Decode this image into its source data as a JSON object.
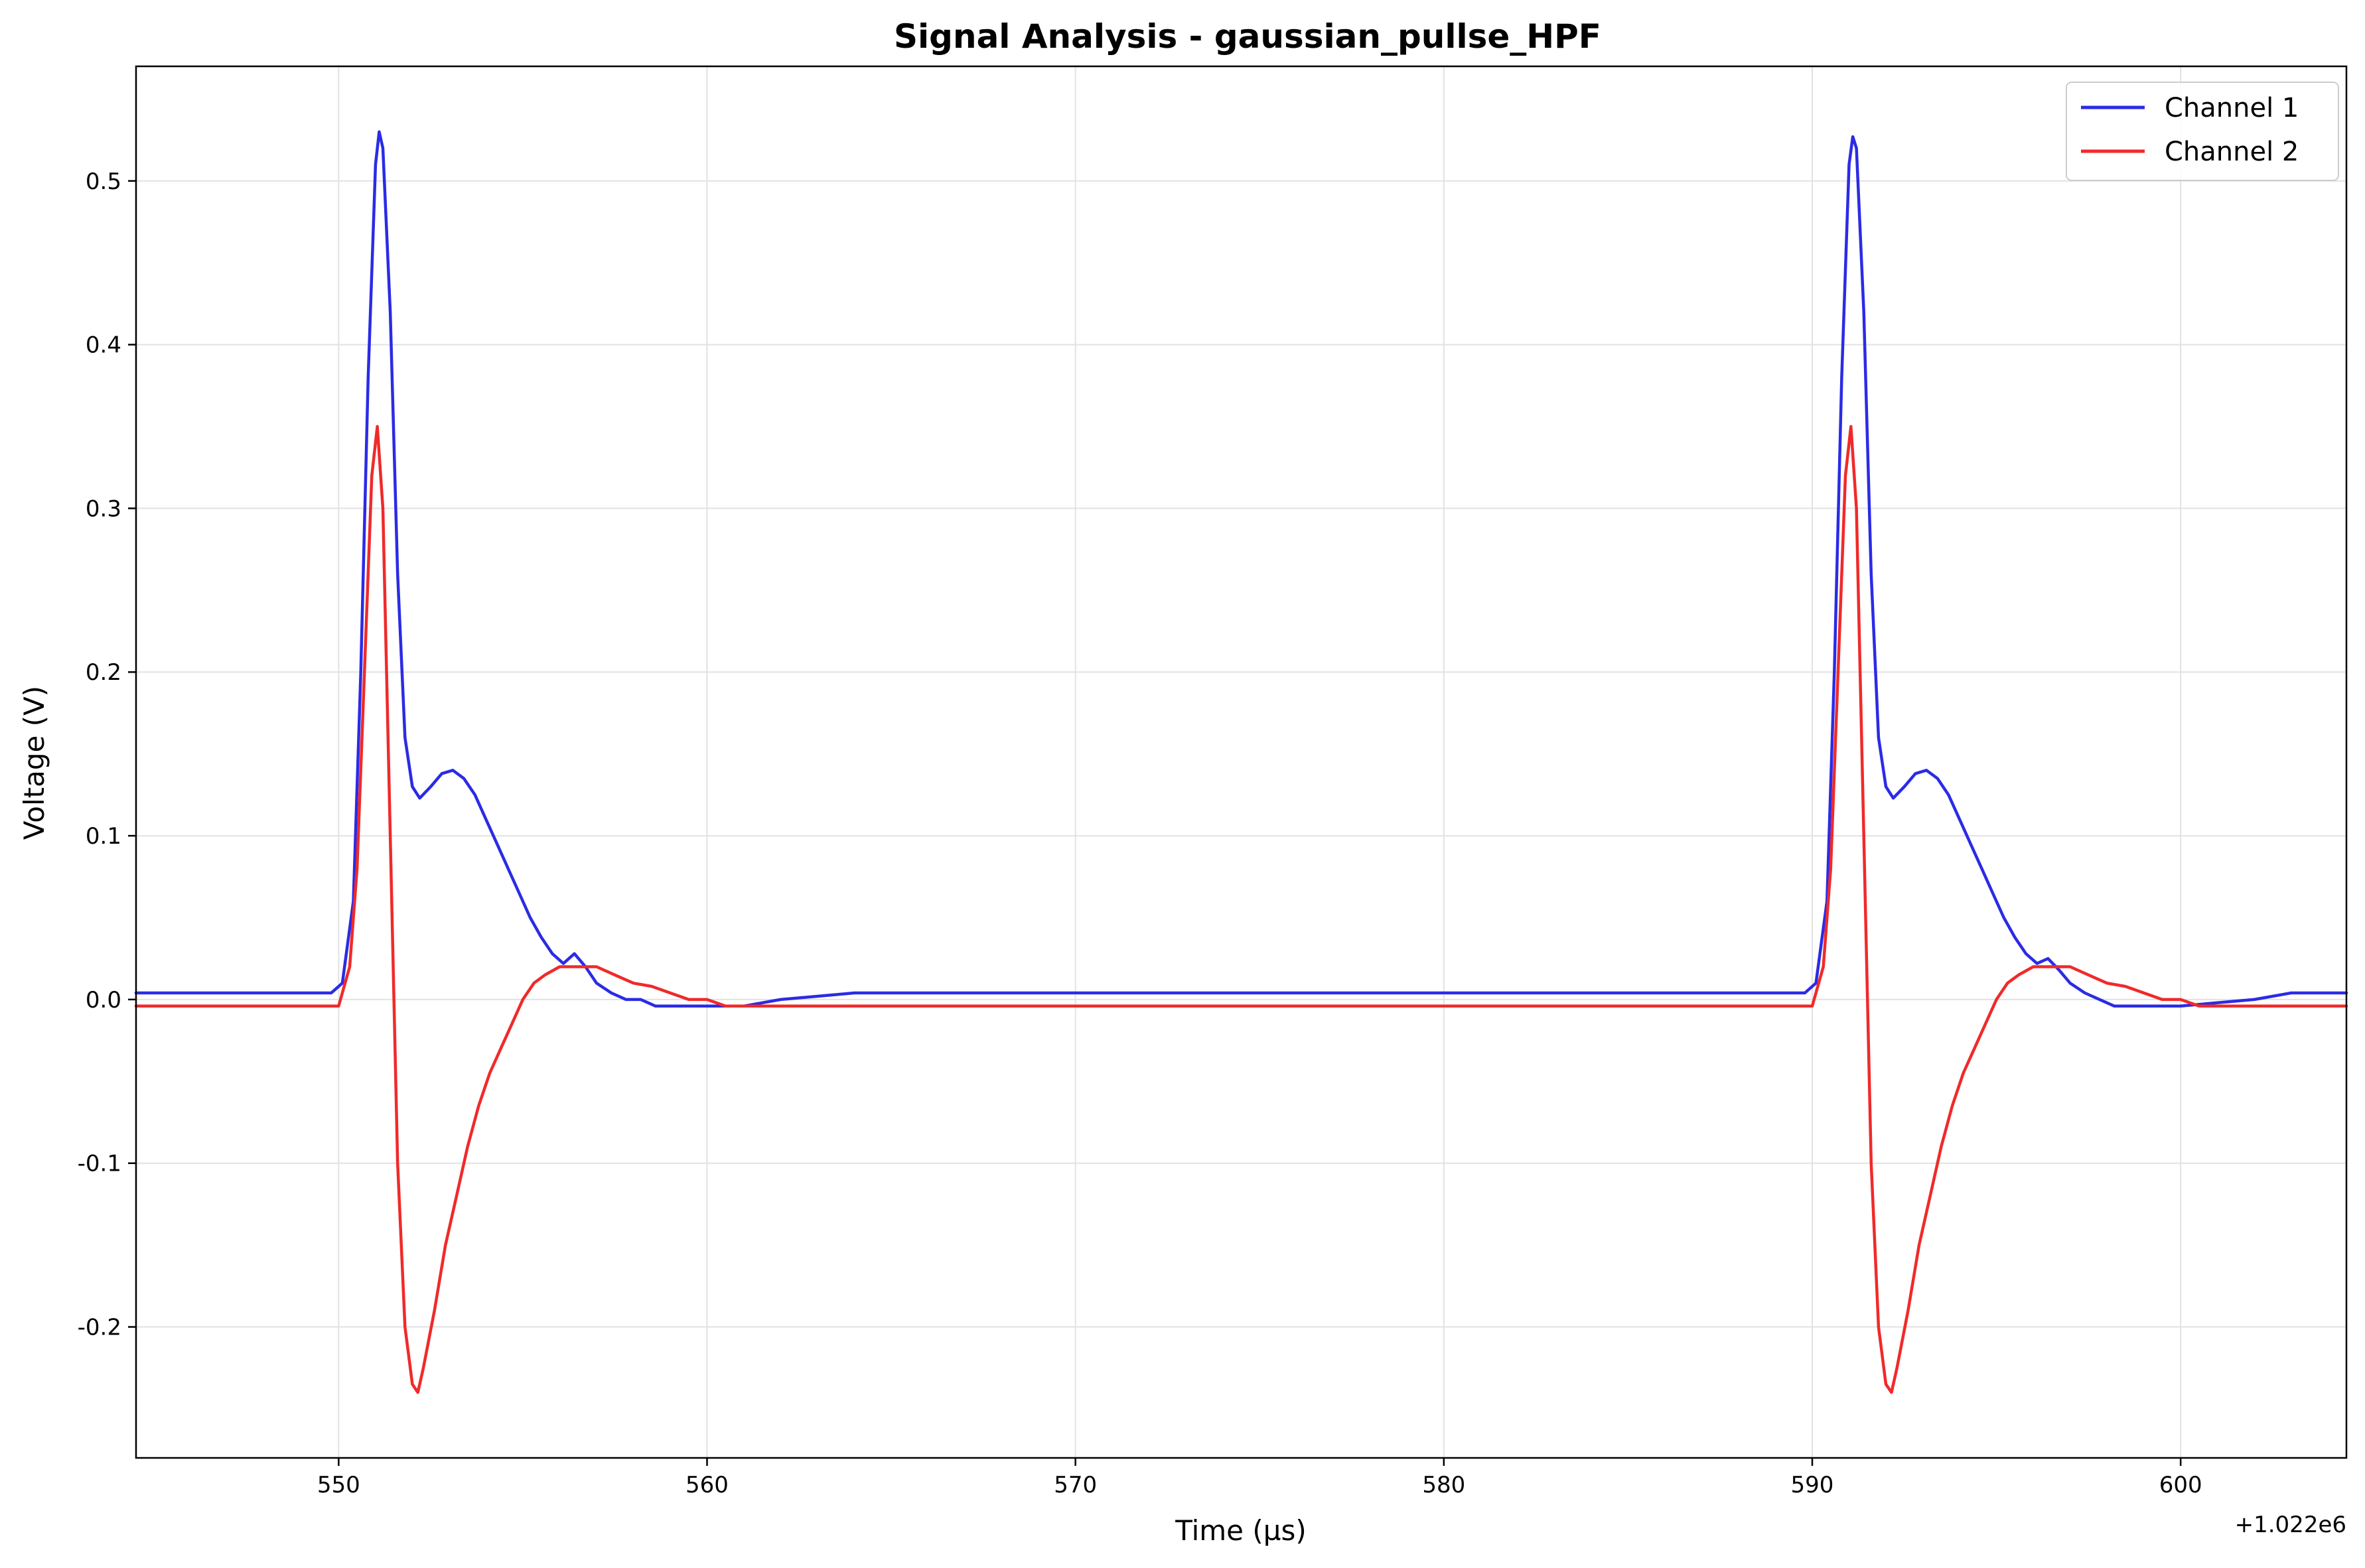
{
  "chart_data": {
    "type": "line",
    "title": "Signal Analysis - gaussian_pullse_HPF",
    "xlabel": "Time (µs)",
    "ylabel": "Voltage (V)",
    "x_offset_label": "+1.022e6",
    "xlim": [
      544.5,
      604.5
    ],
    "ylim": [
      -0.28,
      0.57
    ],
    "xticks": [
      550,
      560,
      570,
      580,
      590,
      600
    ],
    "yticks": [
      -0.2,
      -0.1,
      0.0,
      0.1,
      0.2,
      0.3,
      0.4,
      0.5
    ],
    "xtick_labels": [
      "550",
      "560",
      "570",
      "580",
      "590",
      "600"
    ],
    "ytick_labels": [
      "-0.2",
      "-0.1",
      "0.0",
      "0.1",
      "0.2",
      "0.3",
      "0.4",
      "0.5"
    ],
    "grid": true,
    "legend_position": "top-right",
    "series": [
      {
        "name": "Channel 1",
        "color": "#2b2be6",
        "x": [
          544.5,
          549.8,
          550.1,
          550.4,
          550.6,
          550.8,
          551.0,
          551.1,
          551.2,
          551.4,
          551.6,
          551.8,
          552.0,
          552.2,
          552.5,
          552.8,
          553.1,
          553.4,
          553.7,
          554.0,
          554.3,
          554.6,
          554.9,
          555.2,
          555.5,
          555.8,
          556.1,
          556.4,
          556.7,
          557.0,
          557.4,
          557.8,
          558.2,
          558.6,
          559.0,
          560.0,
          561.0,
          562.0,
          563.0,
          564.0,
          565.0,
          570.0,
          575.0,
          580.0,
          585.0,
          589.8,
          590.1,
          590.4,
          590.6,
          590.8,
          591.0,
          591.1,
          591.2,
          591.4,
          591.6,
          591.8,
          592.0,
          592.2,
          592.5,
          592.8,
          593.1,
          593.4,
          593.7,
          594.0,
          594.3,
          594.6,
          594.9,
          595.2,
          595.5,
          595.8,
          596.1,
          596.4,
          596.7,
          597.0,
          597.4,
          597.8,
          598.2,
          598.6,
          599.0,
          600.0,
          601.0,
          602.0,
          603.0,
          604.5
        ],
        "y": [
          0.004,
          0.004,
          0.01,
          0.06,
          0.2,
          0.38,
          0.51,
          0.53,
          0.52,
          0.42,
          0.26,
          0.16,
          0.13,
          0.123,
          0.13,
          0.138,
          0.14,
          0.135,
          0.125,
          0.11,
          0.095,
          0.08,
          0.065,
          0.05,
          0.038,
          0.028,
          0.022,
          0.028,
          0.02,
          0.01,
          0.004,
          0.0,
          0.0,
          -0.004,
          -0.004,
          -0.004,
          -0.004,
          0.0,
          0.002,
          0.004,
          0.004,
          0.004,
          0.004,
          0.004,
          0.004,
          0.004,
          0.01,
          0.06,
          0.2,
          0.38,
          0.51,
          0.527,
          0.52,
          0.42,
          0.26,
          0.16,
          0.13,
          0.123,
          0.13,
          0.138,
          0.14,
          0.135,
          0.125,
          0.11,
          0.095,
          0.08,
          0.065,
          0.05,
          0.038,
          0.028,
          0.022,
          0.025,
          0.018,
          0.01,
          0.004,
          0.0,
          -0.004,
          -0.004,
          -0.004,
          -0.004,
          -0.002,
          0.0,
          0.004,
          0.004
        ]
      },
      {
        "name": "Channel 2",
        "color": "#f02a2a",
        "x": [
          544.5,
          550.0,
          550.3,
          550.5,
          550.7,
          550.9,
          551.05,
          551.2,
          551.4,
          551.6,
          551.8,
          552.0,
          552.15,
          552.3,
          552.6,
          552.9,
          553.2,
          553.5,
          553.8,
          554.1,
          554.4,
          554.7,
          555.0,
          555.3,
          555.6,
          556.0,
          556.5,
          557.0,
          557.5,
          558.0,
          558.5,
          559.0,
          559.5,
          560.0,
          560.5,
          565.0,
          570.0,
          575.0,
          580.0,
          585.0,
          590.0,
          590.3,
          590.5,
          590.7,
          590.9,
          591.05,
          591.2,
          591.4,
          591.6,
          591.8,
          592.0,
          592.15,
          592.3,
          592.6,
          592.9,
          593.2,
          593.5,
          593.8,
          594.1,
          594.4,
          594.7,
          595.0,
          595.3,
          595.6,
          596.0,
          596.5,
          597.0,
          597.5,
          598.0,
          598.5,
          599.0,
          599.5,
          600.0,
          600.5,
          604.5
        ],
        "y": [
          -0.004,
          -0.004,
          0.02,
          0.08,
          0.2,
          0.32,
          0.35,
          0.3,
          0.1,
          -0.1,
          -0.2,
          -0.235,
          -0.24,
          -0.225,
          -0.19,
          -0.15,
          -0.12,
          -0.09,
          -0.065,
          -0.045,
          -0.03,
          -0.015,
          0.0,
          0.01,
          0.015,
          0.02,
          0.02,
          0.02,
          0.015,
          0.01,
          0.008,
          0.004,
          0.0,
          0.0,
          -0.004,
          -0.004,
          -0.004,
          -0.004,
          -0.004,
          -0.004,
          -0.004,
          0.02,
          0.08,
          0.2,
          0.32,
          0.35,
          0.3,
          0.1,
          -0.1,
          -0.2,
          -0.235,
          -0.24,
          -0.225,
          -0.19,
          -0.15,
          -0.12,
          -0.09,
          -0.065,
          -0.045,
          -0.03,
          -0.015,
          0.0,
          0.01,
          0.015,
          0.02,
          0.02,
          0.02,
          0.015,
          0.01,
          0.008,
          0.004,
          0.0,
          0.0,
          -0.004,
          -0.004
        ]
      }
    ]
  }
}
